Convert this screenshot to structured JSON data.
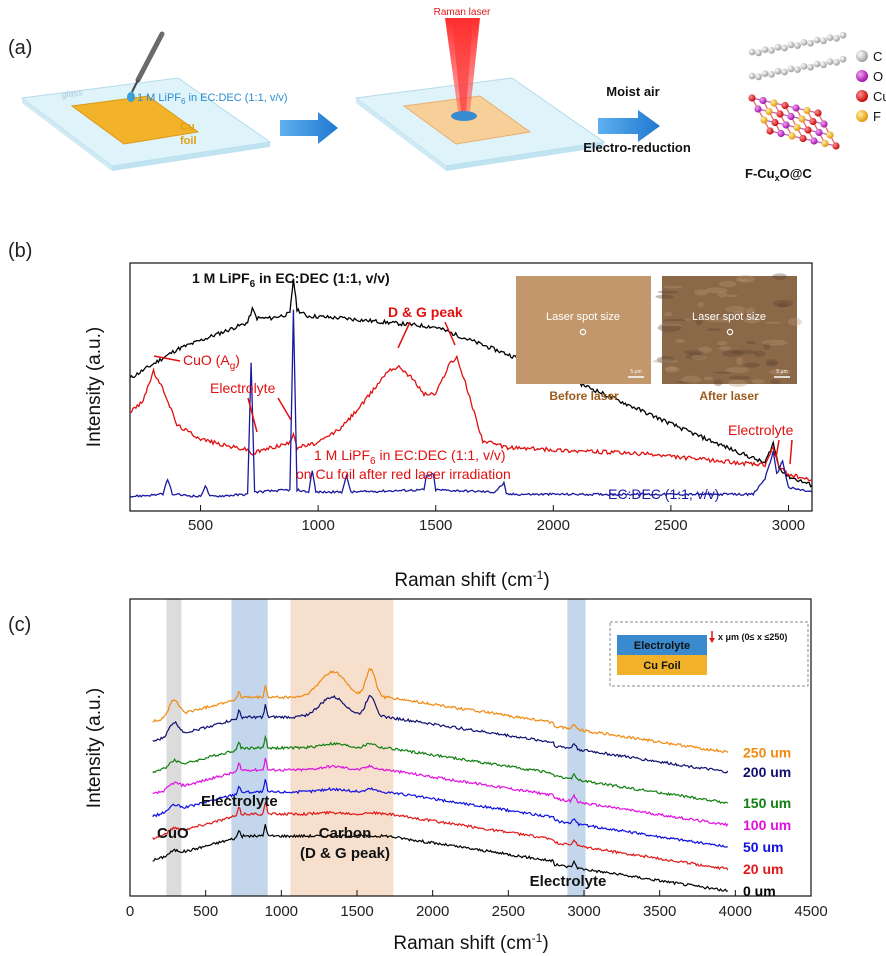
{
  "panel_a": {
    "label": "(a)",
    "glass_text": "glass",
    "electrolyte_text": "1 M LiPF6 in EC:DEC (1:1, v/v)",
    "cu_text_1": "Cu",
    "cu_text_2": "foil",
    "laser_text": "Raman laser",
    "process_1": "Moist air",
    "process_2": "Electro-reduction",
    "product": "F-CuxO@C",
    "legend": [
      "C",
      "O",
      "Cu",
      "F"
    ],
    "legend_colors": [
      "#b8b8b8",
      "#b020b8",
      "#e01818",
      "#f0b018"
    ]
  },
  "panel_b": {
    "label": "(b)",
    "ylabel": "Intensity (a.u.)",
    "xlabel": "Raman shift (cm-1)",
    "ann_black": "1 M LiPF6 in EC:DEC (1:1, v/v)",
    "ann_dg": "D & G  peak",
    "ann_cuo": "CuO (Ag)",
    "ann_electrolyte_1": "Electrolyte",
    "ann_red_1": "1 M LiPF6 in EC:DEC (1:1, v/v)",
    "ann_red_2": "on Cu foil  after red laser irradiation",
    "ann_blue": "EC:DEC (1:1, v/v)",
    "ann_electrolyte_2": "Electrolyte",
    "inset_before_text": "Laser spot size",
    "inset_after_text": "Laser spot size",
    "inset_before_label": "Before laser",
    "inset_after_label": "After laser",
    "scale_bar_1": "5 μm",
    "scale_bar_2": "5 μm"
  },
  "panel_c": {
    "label": "(c)",
    "ylabel": "Intensity (a.u.)",
    "xlabel": "Raman shift (cm-1)",
    "band_labels": [
      "CuO",
      "Electrolyte",
      "Carbon",
      "(D & G peak)",
      "Electrolyte"
    ],
    "inset_electrolyte": "Electrolyte",
    "inset_cufoil": "Cu Foil",
    "inset_x_text": "x μm (0≤ x ≤250)"
  },
  "chart_data": [
    {
      "type": "line",
      "xlabel": "Raman shift (cm-1)",
      "ylabel": "Intensity (a.u.)",
      "xlim": [
        200,
        3100
      ],
      "xticks": [
        500,
        1000,
        1500,
        2000,
        2500,
        3000
      ],
      "yticks_shown": false,
      "series": [
        {
          "name": "1 M LiPF6 in EC:DEC (1:1, v/v)",
          "color": "#000000",
          "x": [
            200,
            400,
            600,
            700,
            720,
            740,
            800,
            880,
            895,
            910,
            950,
            1100,
            1300,
            1500,
            1700,
            2000,
            2300,
            2600,
            2900,
            2935,
            2960,
            3000,
            3100
          ],
          "y": [
            0.55,
            0.68,
            0.76,
            0.8,
            0.86,
            0.82,
            0.82,
            0.84,
            1.0,
            0.86,
            0.83,
            0.82,
            0.8,
            0.78,
            0.7,
            0.58,
            0.44,
            0.3,
            0.17,
            0.26,
            0.15,
            0.11,
            0.07
          ]
        },
        {
          "name": "1 M LiPF6 in EC:DEC (1:1, v/v) on Cu foil after red laser irradiation",
          "color": "#e01010",
          "x": [
            200,
            250,
            300,
            350,
            400,
            500,
            600,
            700,
            720,
            740,
            800,
            880,
            895,
            910,
            1000,
            1100,
            1200,
            1300,
            1350,
            1400,
            1450,
            1500,
            1560,
            1590,
            1620,
            1700,
            1800,
            2000,
            2200,
            2400,
            2600,
            2800,
            2900,
            2935,
            2960,
            3000,
            3100
          ],
          "y": [
            0.4,
            0.44,
            0.58,
            0.48,
            0.34,
            0.28,
            0.25,
            0.23,
            0.21,
            0.22,
            0.24,
            0.26,
            0.31,
            0.24,
            0.26,
            0.33,
            0.45,
            0.59,
            0.6,
            0.55,
            0.48,
            0.48,
            0.62,
            0.64,
            0.55,
            0.27,
            0.24,
            0.23,
            0.22,
            0.21,
            0.19,
            0.17,
            0.16,
            0.24,
            0.15,
            0.12,
            0.09
          ]
        },
        {
          "name": "EC:DEC (1:1, v/v)",
          "color": "#1a1aa0",
          "x": [
            200,
            340,
            360,
            380,
            500,
            520,
            540,
            700,
            715,
            730,
            880,
            895,
            910,
            960,
            975,
            990,
            1100,
            1120,
            1140,
            1450,
            1460,
            1490,
            1500,
            1750,
            1790,
            1800,
            2850,
            2900,
            2935,
            2950,
            2975,
            3000,
            3100
          ],
          "y": [
            0.02,
            0.03,
            0.1,
            0.03,
            0.02,
            0.07,
            0.02,
            0.03,
            0.62,
            0.04,
            0.05,
            0.86,
            0.05,
            0.04,
            0.14,
            0.04,
            0.04,
            0.11,
            0.04,
            0.05,
            0.11,
            0.12,
            0.05,
            0.04,
            0.08,
            0.03,
            0.03,
            0.1,
            0.22,
            0.12,
            0.18,
            0.06,
            0.04
          ]
        }
      ]
    },
    {
      "type": "line",
      "xlabel": "Raman shift (cm-1)",
      "ylabel": "Intensity (a.u.)",
      "xlim": [
        0,
        4500
      ],
      "xticks": [
        0,
        500,
        1000,
        1500,
        2000,
        2500,
        3000,
        3500,
        4000,
        4500
      ],
      "yticks_shown": false,
      "bands": [
        {
          "label": "CuO",
          "x0": 240,
          "x1": 340,
          "color": "#d6d6d6"
        },
        {
          "label": "Electrolyte",
          "x0": 670,
          "x1": 910,
          "color": "#b8cfe8"
        },
        {
          "label": "Carbon (D & G peak)",
          "x0": 1060,
          "x1": 1740,
          "color": "#f6d9c4"
        },
        {
          "label": "Electrolyte",
          "x0": 2890,
          "x1": 3010,
          "color": "#b8cfe8"
        }
      ],
      "series": [
        {
          "name": "0 um",
          "color": "#000000",
          "label_color": "#000000",
          "offset": 0.0,
          "carbon": 0.0
        },
        {
          "name": "20 um",
          "color": "#e01818",
          "label_color": "#e01818",
          "offset": 1.0,
          "carbon": 0.05
        },
        {
          "name": "50 um",
          "color": "#1010e0",
          "label_color": "#1010e0",
          "offset": 2.0,
          "carbon": 0.1
        },
        {
          "name": "100 um",
          "color": "#e010e0",
          "label_color": "#e010e0",
          "offset": 3.0,
          "carbon": 0.12
        },
        {
          "name": "150 um",
          "color": "#108010",
          "label_color": "#108010",
          "offset": 4.0,
          "carbon": 0.15
        },
        {
          "name": "200 um",
          "color": "#101070",
          "label_color": "#101070",
          "offset": 5.4,
          "carbon": 0.7
        },
        {
          "name": "250 um",
          "color": "#f08a10",
          "label_color": "#f08a10",
          "offset": 6.3,
          "carbon": 0.9
        }
      ]
    }
  ]
}
